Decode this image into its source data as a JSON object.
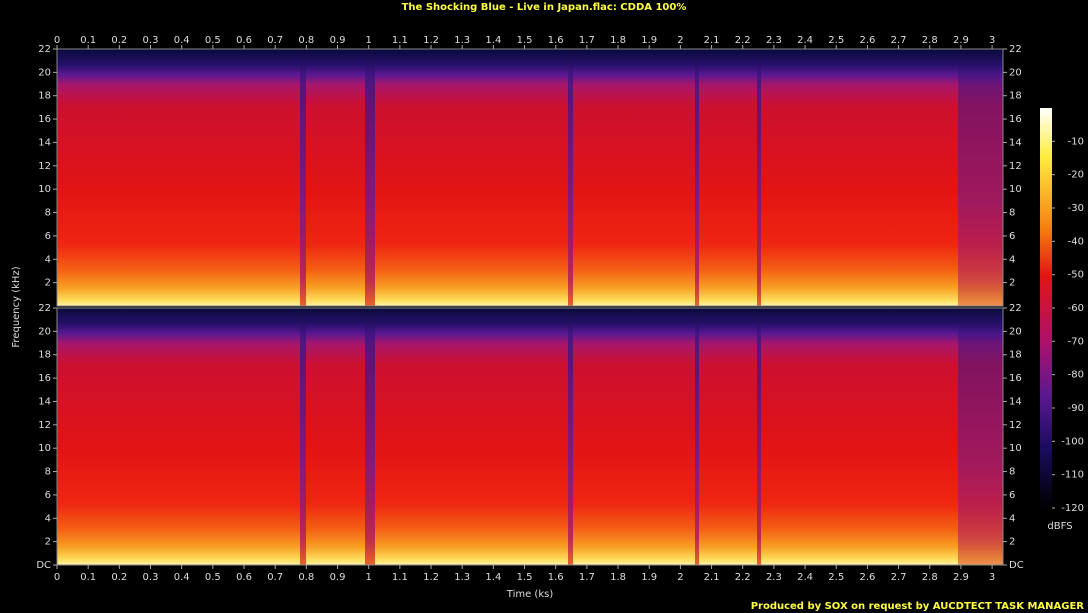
{
  "chart_data": {
    "type": "spectrogram",
    "title": "The Shocking Blue - Live in Japan.flac: CDDA 100%",
    "xlabel": "Time (ks)",
    "ylabel": "Frequency (kHz)",
    "footer": "Produced by SOX on request by AUCDTECT TASK MANAGER",
    "xlim": [
      0,
      3.035
    ],
    "xticks": [
      0,
      0.1,
      0.2,
      0.3,
      0.4,
      0.5,
      0.6,
      0.7,
      0.8,
      0.9,
      1,
      1.1,
      1.2,
      1.3,
      1.4,
      1.5,
      1.6,
      1.7,
      1.8,
      1.9,
      2,
      2.1,
      2.2,
      2.3,
      2.4,
      2.5,
      2.6,
      2.7,
      2.8,
      2.9,
      3
    ],
    "panels": [
      {
        "ylim": [
          0,
          22
        ],
        "yticks": [
          2,
          4,
          6,
          8,
          10,
          12,
          14,
          16,
          18,
          20,
          22
        ]
      },
      {
        "ylim": [
          0,
          22
        ],
        "yticks": [
          {
            "value": 0,
            "label": "DC"
          },
          2,
          4,
          6,
          8,
          10,
          12,
          14,
          16,
          18,
          20,
          22
        ]
      }
    ],
    "colorbar": {
      "label": "dBFS",
      "lim": [
        -120,
        0
      ],
      "ticks": [
        -10,
        -20,
        -30,
        -40,
        -50,
        -60,
        -70,
        -80,
        -90,
        -100,
        -110,
        -120
      ]
    }
  }
}
